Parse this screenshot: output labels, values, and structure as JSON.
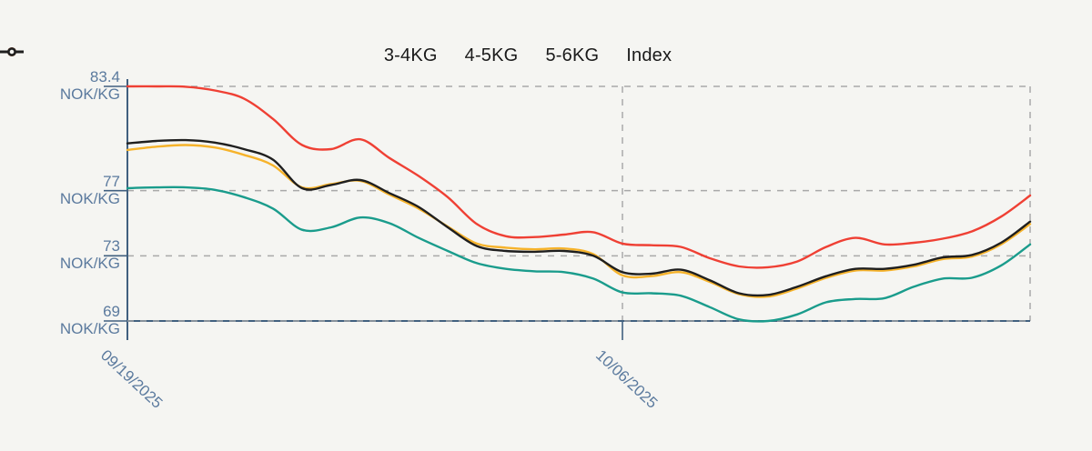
{
  "chart_data": {
    "type": "line",
    "title": "",
    "ylabel_unit": "NOK/KG",
    "x_unit": "days (one point per day starting 09/19/2025)",
    "x": [
      0,
      1,
      2,
      3,
      4,
      5,
      6,
      7,
      8,
      9,
      10,
      11,
      12,
      13,
      14,
      15,
      16,
      17,
      18,
      19,
      20,
      21,
      22,
      23,
      24,
      25,
      26,
      27,
      28,
      29,
      30,
      31
    ],
    "series": [
      {
        "name": "3-4KG",
        "color": "#1a9c8c",
        "values": [
          77.15,
          77.2,
          77.2,
          77.05,
          76.6,
          75.9,
          74.6,
          74.75,
          75.35,
          75.0,
          74.1,
          73.3,
          72.55,
          72.2,
          72.05,
          72.0,
          71.6,
          70.75,
          70.7,
          70.55,
          69.85,
          69.1,
          69.0,
          69.4,
          70.15,
          70.35,
          70.4,
          71.1,
          71.6,
          71.65,
          72.4,
          73.7
        ]
      },
      {
        "name": "4-5KG",
        "color": "#f6b32b",
        "values": [
          79.5,
          79.7,
          79.8,
          79.65,
          79.2,
          78.55,
          77.2,
          77.4,
          77.6,
          76.75,
          75.9,
          74.8,
          73.75,
          73.5,
          73.4,
          73.45,
          73.1,
          71.8,
          71.75,
          72.0,
          71.4,
          70.65,
          70.5,
          71.0,
          71.65,
          72.1,
          72.1,
          72.35,
          72.8,
          72.95,
          73.7,
          74.95
        ]
      },
      {
        "name": "5-6KG",
        "color": "#ef4034",
        "values": [
          83.4,
          83.4,
          83.38,
          83.15,
          82.65,
          81.4,
          79.8,
          79.55,
          80.15,
          79.0,
          77.9,
          76.6,
          74.95,
          74.2,
          74.15,
          74.3,
          74.45,
          73.75,
          73.65,
          73.55,
          72.85,
          72.35,
          72.3,
          72.65,
          73.55,
          74.1,
          73.7,
          73.8,
          74.05,
          74.5,
          75.4,
          76.7
        ]
      },
      {
        "name": "Index",
        "color": "#1f1f1f",
        "values": [
          79.9,
          80.05,
          80.1,
          79.95,
          79.55,
          78.9,
          77.15,
          77.35,
          77.65,
          76.85,
          76.0,
          74.75,
          73.6,
          73.3,
          73.25,
          73.3,
          73.0,
          72.0,
          71.9,
          72.15,
          71.5,
          70.7,
          70.6,
          71.1,
          71.75,
          72.2,
          72.2,
          72.45,
          72.9,
          73.05,
          73.8,
          75.1
        ]
      }
    ],
    "ylim": [
      69,
      83.4
    ],
    "y_ticks": [
      {
        "value": 83.4,
        "num": "83.4",
        "unit": "NOK/KG"
      },
      {
        "value": 77,
        "num": "77",
        "unit": "NOK/KG"
      },
      {
        "value": 73,
        "num": "73",
        "unit": "NOK/KG"
      },
      {
        "value": 69,
        "num": "69",
        "unit": "NOK/KG"
      }
    ],
    "x_ticks": [
      {
        "label": "09/19/2025",
        "day": 0
      },
      {
        "label": "10/06/2025",
        "day": 17
      }
    ],
    "grid": "dashed horizontal and vertical at ticks plus right edge",
    "legend_position": "top-center"
  },
  "legend": {
    "items": [
      {
        "label": "3-4KG",
        "color": "#1a9c8c"
      },
      {
        "label": "4-5KG",
        "color": "#f6b32b"
      },
      {
        "label": "5-6KG",
        "color": "#ef4034"
      },
      {
        "label": "Index",
        "color": "#1f1f1f"
      }
    ]
  },
  "colors": {
    "background": "#f5f5f2",
    "axis_line": "#41607f",
    "axis_text": "#5b7a9e",
    "gridline": "#a9a9a9",
    "legend_text": "#1a1a1a"
  }
}
